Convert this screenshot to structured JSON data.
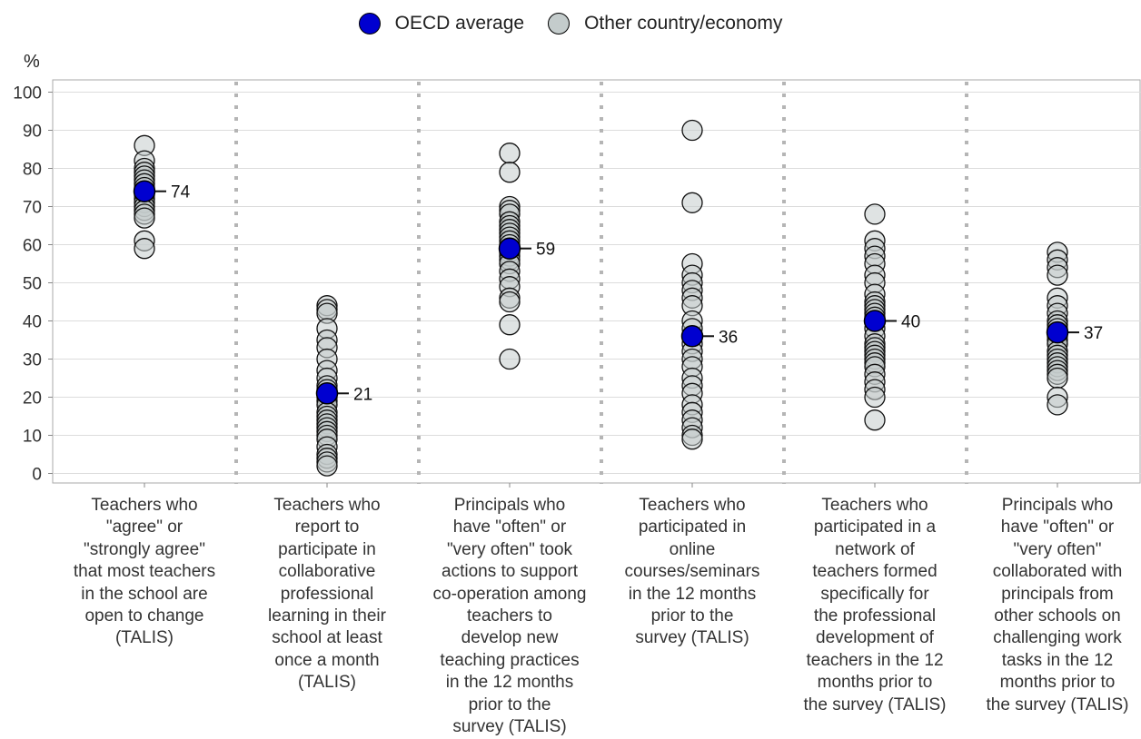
{
  "chart_data": {
    "type": "scatter",
    "unit_label": "%",
    "ylim": [
      0,
      100
    ],
    "yticks": [
      0,
      10,
      20,
      30,
      40,
      50,
      60,
      70,
      80,
      90,
      100
    ],
    "grid": true,
    "legend_position": "top-center",
    "legend": [
      {
        "name": "OECD average",
        "color": "#0000d0"
      },
      {
        "name": "Other country/economy",
        "color": "#b8c0c0"
      }
    ],
    "categories": [
      "Teachers who\n\"agree\" or\n\"strongly agree\"\nthat most teachers\nin the school are\nopen to change\n(TALIS)",
      "Teachers who\nreport to\nparticipate in\ncollaborative\nprofessional\nlearning in their\nschool at least\nonce a month\n(TALIS)",
      "Principals who\nhave \"often\" or\n\"very often\" took\nactions to support\nco-operation among\nteachers to\ndevelop new\nteaching practices\nin the 12 months\nprior to the\nsurvey (TALIS)",
      "Teachers who\nparticipated in\nonline\ncourses/seminars\nin the 12 months\nprior to the\nsurvey (TALIS)",
      "Teachers who\nparticipated in a\nnetwork of\nteachers formed\nspecifically for\nthe professional\ndevelopment of\nteachers in the 12\nmonths prior to\nthe survey (TALIS)",
      "Principals who\nhave \"often\" or\n\"very often\"\ncollaborated with\nprincipals from\nother schools on\nchallenging work\ntasks in the 12\nmonths prior to\nthe survey (TALIS)"
    ],
    "series": [
      {
        "name": "OECD average",
        "values": [
          74,
          21,
          59,
          36,
          40,
          37
        ],
        "value_labels": [
          "74",
          "21",
          "59",
          "36",
          "40",
          "37"
        ]
      },
      {
        "name": "Other country/economy",
        "values": [
          [
            86,
            82,
            80,
            79,
            78,
            77,
            76,
            75,
            74,
            73,
            72,
            71,
            70,
            69,
            68,
            67,
            61,
            59
          ],
          [
            44,
            43,
            42,
            38,
            35,
            33,
            30,
            27,
            25,
            23,
            22,
            20,
            19,
            18,
            16,
            15,
            14,
            13,
            12,
            11,
            10,
            9,
            7,
            5,
            4,
            3,
            2
          ],
          [
            84,
            79,
            70,
            69,
            68,
            66,
            65,
            64,
            63,
            62,
            61,
            60,
            58,
            57,
            56,
            55,
            53,
            51,
            49,
            46,
            45,
            39,
            30
          ],
          [
            90,
            71,
            55,
            52,
            50,
            48,
            46,
            44,
            40,
            38,
            36,
            34,
            32,
            30,
            28,
            25,
            23,
            21,
            18,
            16,
            14,
            12,
            10,
            9
          ],
          [
            68,
            61,
            59,
            57,
            55,
            52,
            50,
            47,
            45,
            44,
            43,
            42,
            41,
            38,
            36,
            34,
            33,
            32,
            31,
            30,
            29,
            28,
            26,
            24,
            22,
            20,
            14
          ],
          [
            58,
            56,
            54,
            52,
            46,
            44,
            42,
            40,
            39,
            38,
            36,
            35,
            34,
            32,
            31,
            30,
            29,
            28,
            27,
            26,
            25,
            20,
            18
          ]
        ]
      }
    ]
  }
}
